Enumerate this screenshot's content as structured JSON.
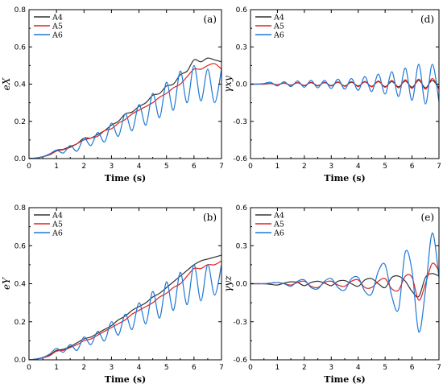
{
  "chart_data": [
    {
      "id": "a",
      "type": "line",
      "panel_label": "(a)",
      "xlabel": "Time (s)",
      "ylabel": "eX",
      "xlim": [
        0,
        7
      ],
      "ylim": [
        0,
        0.8
      ],
      "xticks": [
        0,
        1,
        2,
        3,
        4,
        5,
        6,
        7
      ],
      "yticks": [
        0.0,
        0.2,
        0.4,
        0.6,
        0.8
      ],
      "ytick_labels": [
        "0.0",
        "0.2",
        "0.4",
        "0.6",
        "0.8"
      ],
      "legend_position": "top-left",
      "series": [
        {
          "name": "A4",
          "color": "#333333",
          "x": [
            0,
            0.25,
            0.5,
            0.75,
            1,
            1.25,
            1.5,
            1.75,
            2,
            2.25,
            2.5,
            2.75,
            3,
            3.25,
            3.5,
            3.75,
            4,
            4.25,
            4.5,
            4.75,
            5,
            5.25,
            5.5,
            5.75,
            6,
            6.25,
            6.5,
            6.75,
            7
          ],
          "y": [
            0,
            0.003,
            0.01,
            0.022,
            0.045,
            0.05,
            0.065,
            0.08,
            0.11,
            0.11,
            0.13,
            0.15,
            0.18,
            0.2,
            0.24,
            0.25,
            0.28,
            0.3,
            0.34,
            0.35,
            0.39,
            0.4,
            0.45,
            0.47,
            0.53,
            0.52,
            0.54,
            0.53,
            0.52
          ]
        },
        {
          "name": "A5",
          "color": "#e02020",
          "x": [
            0,
            0.25,
            0.5,
            0.75,
            1,
            1.25,
            1.5,
            1.75,
            2,
            2.25,
            2.5,
            2.75,
            3,
            3.25,
            3.5,
            3.75,
            4,
            4.25,
            4.5,
            4.75,
            5,
            5.25,
            5.5,
            5.75,
            6,
            6.25,
            6.5,
            6.75,
            7
          ],
          "y": [
            0,
            0.003,
            0.01,
            0.02,
            0.04,
            0.048,
            0.06,
            0.08,
            0.1,
            0.11,
            0.12,
            0.15,
            0.16,
            0.19,
            0.21,
            0.24,
            0.26,
            0.28,
            0.3,
            0.33,
            0.35,
            0.38,
            0.4,
            0.44,
            0.48,
            0.48,
            0.5,
            0.51,
            0.48
          ]
        },
        {
          "name": "A6",
          "color": "#1f78d6",
          "x": [
            0,
            0.25,
            0.5,
            0.75,
            1,
            1.25,
            1.5,
            1.75,
            2,
            2.25,
            2.5,
            2.75,
            3,
            3.25,
            3.5,
            3.75,
            4,
            4.25,
            4.5,
            4.75,
            5,
            5.25,
            5.5,
            5.75,
            6,
            6.25,
            6.5,
            6.75,
            7
          ],
          "y": [
            0,
            0.003,
            0.01,
            0.025,
            0.045,
            0.03,
            0.07,
            0.04,
            0.11,
            0.07,
            0.14,
            0.09,
            0.19,
            0.12,
            0.24,
            0.15,
            0.29,
            0.18,
            0.35,
            0.22,
            0.41,
            0.26,
            0.47,
            0.3,
            0.5,
            0.31,
            0.48,
            0.3,
            0.48
          ]
        }
      ]
    },
    {
      "id": "b",
      "type": "line",
      "panel_label": "(b)",
      "xlabel": "Time (s)",
      "ylabel": "eY",
      "xlim": [
        0,
        7
      ],
      "ylim": [
        0,
        0.8
      ],
      "xticks": [
        0,
        1,
        2,
        3,
        4,
        5,
        6,
        7
      ],
      "yticks": [
        0.0,
        0.2,
        0.4,
        0.6,
        0.8
      ],
      "ytick_labels": [
        "0.0",
        "0.2",
        "0.4",
        "0.6",
        "0.8"
      ],
      "legend_position": "top-left",
      "series": [
        {
          "name": "A4",
          "color": "#333333",
          "x": [
            0,
            0.25,
            0.5,
            0.75,
            1,
            1.25,
            1.5,
            1.75,
            2,
            2.25,
            2.5,
            2.75,
            3,
            3.25,
            3.5,
            3.75,
            4,
            4.25,
            4.5,
            4.75,
            5,
            5.25,
            5.5,
            5.75,
            6,
            6.25,
            6.5,
            6.75,
            7
          ],
          "y": [
            0,
            0.004,
            0.012,
            0.025,
            0.05,
            0.055,
            0.07,
            0.09,
            0.11,
            0.12,
            0.14,
            0.16,
            0.18,
            0.21,
            0.23,
            0.26,
            0.28,
            0.3,
            0.33,
            0.35,
            0.38,
            0.41,
            0.44,
            0.47,
            0.5,
            0.52,
            0.53,
            0.54,
            0.55
          ]
        },
        {
          "name": "A5",
          "color": "#e02020",
          "x": [
            0,
            0.25,
            0.5,
            0.75,
            1,
            1.25,
            1.5,
            1.75,
            2,
            2.25,
            2.5,
            2.75,
            3,
            3.25,
            3.5,
            3.75,
            4,
            4.25,
            4.5,
            4.75,
            5,
            5.25,
            5.5,
            5.75,
            6,
            6.25,
            6.5,
            6.75,
            7
          ],
          "y": [
            0,
            0.004,
            0.01,
            0.022,
            0.045,
            0.05,
            0.065,
            0.08,
            0.1,
            0.11,
            0.13,
            0.15,
            0.17,
            0.19,
            0.21,
            0.24,
            0.26,
            0.28,
            0.3,
            0.33,
            0.35,
            0.38,
            0.4,
            0.44,
            0.48,
            0.48,
            0.5,
            0.5,
            0.52
          ]
        },
        {
          "name": "A6",
          "color": "#1f78d6",
          "x": [
            0,
            0.25,
            0.5,
            0.75,
            1,
            1.25,
            1.5,
            1.75,
            2,
            2.25,
            2.5,
            2.75,
            3,
            3.25,
            3.5,
            3.75,
            4,
            4.25,
            4.5,
            4.75,
            5,
            5.25,
            5.5,
            5.75,
            6,
            6.25,
            6.5,
            6.75,
            7
          ],
          "y": [
            0,
            0.004,
            0.012,
            0.03,
            0.06,
            0.04,
            0.08,
            0.05,
            0.12,
            0.08,
            0.15,
            0.1,
            0.2,
            0.13,
            0.24,
            0.16,
            0.3,
            0.19,
            0.36,
            0.22,
            0.41,
            0.26,
            0.46,
            0.29,
            0.5,
            0.31,
            0.5,
            0.34,
            0.5
          ]
        }
      ]
    },
    {
      "id": "d",
      "type": "line",
      "panel_label": "(d)",
      "xlabel": "Time (s)",
      "ylabel": "γxy",
      "xlim": [
        0,
        7
      ],
      "ylim": [
        -0.6,
        0.6
      ],
      "xticks": [
        0,
        1,
        2,
        3,
        4,
        5,
        6,
        7
      ],
      "yticks": [
        -0.6,
        -0.3,
        0.0,
        0.3,
        0.6
      ],
      "ytick_labels": [
        "-0.6",
        "-0.3",
        "0.0",
        "0.3",
        "0.6"
      ],
      "legend_position": "top-left",
      "series": [
        {
          "name": "A4",
          "color": "#333333",
          "x": [
            0,
            0.25,
            0.5,
            0.75,
            1,
            1.25,
            1.5,
            1.75,
            2,
            2.25,
            2.5,
            2.75,
            3,
            3.25,
            3.5,
            3.75,
            4,
            4.25,
            4.5,
            4.75,
            5,
            5.25,
            5.5,
            5.75,
            6,
            6.25,
            6.5,
            6.75,
            7
          ],
          "y": [
            0,
            0,
            0,
            0.005,
            -0.005,
            0.008,
            -0.008,
            0.01,
            -0.01,
            0.012,
            -0.012,
            0.012,
            -0.012,
            0.015,
            -0.015,
            0.015,
            -0.015,
            0.018,
            -0.018,
            0.02,
            -0.02,
            0.02,
            -0.022,
            0.025,
            -0.025,
            0.03,
            -0.03,
            0.03,
            -0.03
          ]
        },
        {
          "name": "A5",
          "color": "#e02020",
          "x": [
            0,
            0.25,
            0.5,
            0.75,
            1,
            1.25,
            1.5,
            1.75,
            2,
            2.25,
            2.5,
            2.75,
            3,
            3.25,
            3.5,
            3.75,
            4,
            4.25,
            4.5,
            4.75,
            5,
            5.25,
            5.5,
            5.75,
            6,
            6.25,
            6.5,
            6.75,
            7
          ],
          "y": [
            0,
            0,
            0,
            0.005,
            -0.005,
            0.01,
            -0.01,
            0.012,
            -0.012,
            0.015,
            -0.015,
            0.015,
            -0.015,
            0.018,
            -0.018,
            0.02,
            -0.02,
            0.022,
            -0.022,
            0.025,
            -0.025,
            0.03,
            -0.03,
            0.035,
            -0.035,
            0.04,
            -0.04,
            0.045,
            -0.04
          ]
        },
        {
          "name": "A6",
          "color": "#1f78d6",
          "x": [
            0,
            0.25,
            0.5,
            0.75,
            1,
            1.25,
            1.5,
            1.75,
            2,
            2.25,
            2.5,
            2.75,
            3,
            3.25,
            3.5,
            3.75,
            4,
            4.25,
            4.5,
            4.75,
            5,
            5.25,
            5.5,
            5.75,
            6,
            6.25,
            6.5,
            6.75,
            7
          ],
          "y": [
            0,
            0,
            0.005,
            0.015,
            -0.015,
            0.02,
            -0.02,
            0.025,
            -0.025,
            0.03,
            -0.03,
            0.03,
            -0.035,
            0.04,
            -0.04,
            0.045,
            -0.05,
            0.06,
            -0.06,
            0.08,
            -0.08,
            0.1,
            -0.1,
            0.13,
            -0.13,
            0.16,
            -0.16,
            0.16,
            -0.14
          ]
        }
      ]
    },
    {
      "id": "e",
      "type": "line",
      "panel_label": "(e)",
      "xlabel": "Time (s)",
      "ylabel": "γyz",
      "xlim": [
        0,
        7
      ],
      "ylim": [
        -0.6,
        0.6
      ],
      "xticks": [
        0,
        1,
        2,
        3,
        4,
        5,
        6,
        7
      ],
      "yticks": [
        -0.6,
        -0.3,
        0.0,
        0.3,
        0.6
      ],
      "ytick_labels": [
        "-0.6",
        "-0.3",
        "0.0",
        "0.3",
        "0.6"
      ],
      "legend_position": "top-left",
      "series": [
        {
          "name": "A4",
          "color": "#333333",
          "x": [
            0,
            0.25,
            0.5,
            0.75,
            1,
            1.25,
            1.5,
            1.75,
            2,
            2.25,
            2.5,
            2.75,
            3,
            3.25,
            3.5,
            3.75,
            4,
            4.25,
            4.5,
            4.75,
            5,
            5.25,
            5.5,
            5.75,
            6,
            6.25,
            6.5,
            6.75,
            7
          ],
          "y": [
            0,
            0,
            0,
            -0.005,
            -0.01,
            0.005,
            0.015,
            0.01,
            -0.015,
            0.01,
            0.02,
            0.005,
            -0.015,
            0.02,
            0.025,
            0.0,
            -0.02,
            0.03,
            0.04,
            0.0,
            -0.03,
            0.05,
            0.06,
            0.02,
            -0.06,
            -0.1,
            0.05,
            0.08,
            0.06
          ]
        },
        {
          "name": "A5",
          "color": "#e02020",
          "x": [
            0,
            0.25,
            0.5,
            0.75,
            1,
            1.25,
            1.5,
            1.75,
            2,
            2.25,
            2.5,
            2.75,
            3,
            3.25,
            3.5,
            3.75,
            4,
            4.25,
            4.5,
            4.75,
            5,
            5.25,
            5.5,
            5.75,
            6,
            6.25,
            6.5,
            6.75,
            7
          ],
          "y": [
            0,
            0,
            0,
            0.005,
            0.01,
            0.0,
            -0.01,
            0.01,
            0.02,
            -0.02,
            -0.03,
            0.01,
            0.02,
            -0.01,
            -0.02,
            0.02,
            0.03,
            -0.03,
            -0.03,
            0.02,
            0.04,
            -0.04,
            -0.05,
            0.06,
            0.05,
            -0.13,
            0.0,
            0.16,
            0.1
          ]
        },
        {
          "name": "A6",
          "color": "#1f78d6",
          "x": [
            0,
            0.25,
            0.5,
            0.75,
            1,
            1.25,
            1.5,
            1.75,
            2,
            2.25,
            2.5,
            2.75,
            3,
            3.25,
            3.5,
            3.75,
            4,
            4.25,
            4.5,
            4.75,
            5,
            5.25,
            5.5,
            5.75,
            6,
            6.25,
            6.5,
            6.75,
            7
          ],
          "y": [
            0,
            0,
            0,
            0.005,
            0.01,
            0.0,
            -0.02,
            0.02,
            0.03,
            -0.03,
            -0.04,
            0.02,
            0.04,
            -0.03,
            -0.05,
            0.04,
            0.05,
            -0.06,
            -0.08,
            0.1,
            0.15,
            -0.1,
            -0.2,
            0.25,
            0.1,
            -0.38,
            -0.05,
            0.4,
            0.05
          ]
        }
      ]
    }
  ]
}
